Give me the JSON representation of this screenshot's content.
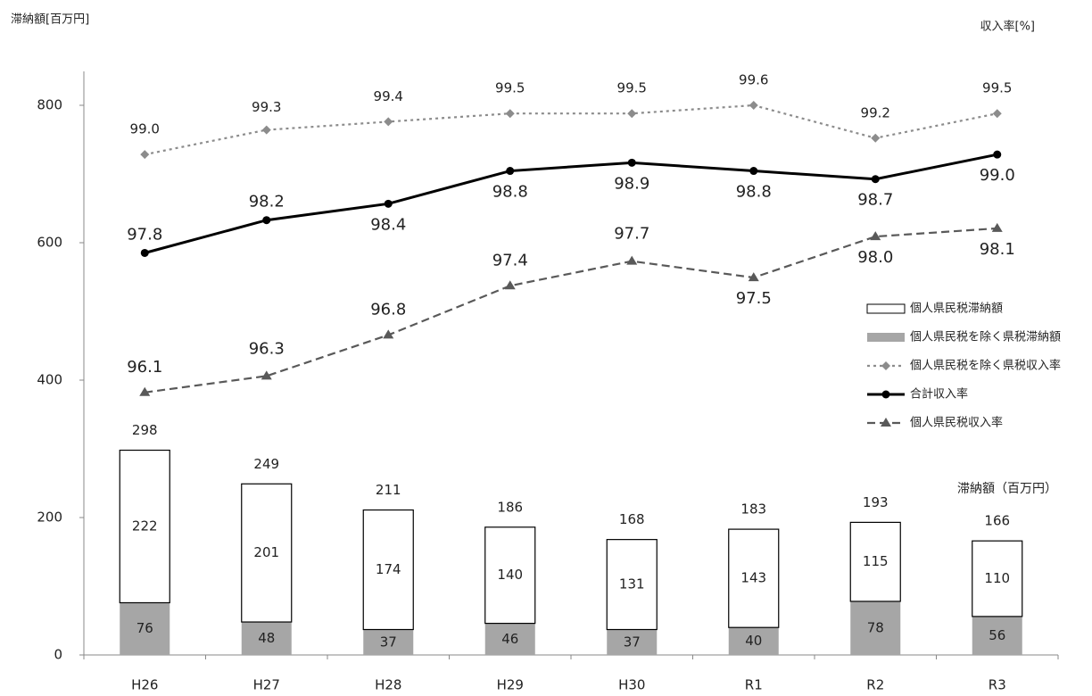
{
  "chart_data": {
    "type": "bar",
    "y_label": "滞納額[百万円]",
    "y2_label": "収入率[%]",
    "annotation": "滞納額（百万円）",
    "categories": [
      "H26",
      "H27",
      "H28",
      "H29",
      "H30",
      "R1",
      "R2",
      "R3"
    ],
    "stacked": true,
    "series": [
      {
        "name": "個人県民税を除く県税滞納額",
        "type": "bar",
        "color": "#a6a6a6",
        "values": [
          76,
          48,
          37,
          46,
          37,
          40,
          78,
          56
        ]
      },
      {
        "name": "個人県民税滞納額",
        "type": "bar",
        "color": "#ffffff",
        "values": [
          222,
          201,
          174,
          140,
          131,
          143,
          115,
          110
        ]
      },
      {
        "name": "個人県民税を除く県税収入率",
        "type": "line",
        "axis": "y2",
        "style": "dotted",
        "marker": "diamond",
        "color": "#8c8c8c",
        "values": [
          99.0,
          99.3,
          99.4,
          99.5,
          99.5,
          99.6,
          99.2,
          99.5
        ],
        "value_labels": [
          "99.0",
          "99.3",
          "99.4",
          "99.5",
          "99.5",
          "99.6",
          "99.2",
          "99.5"
        ]
      },
      {
        "name": "合計収入率",
        "type": "line",
        "axis": "y2",
        "style": "solid",
        "marker": "circle",
        "color": "#000000",
        "values": [
          97.8,
          98.2,
          98.4,
          98.8,
          98.9,
          98.8,
          98.7,
          99.0
        ],
        "value_labels": [
          "97.8",
          "98.2",
          "98.4",
          "98.8",
          "98.9",
          "98.8",
          "98.7",
          "99.0"
        ]
      },
      {
        "name": "個人県民税収入率",
        "type": "line",
        "axis": "y2",
        "style": "dashed",
        "marker": "triangle",
        "color": "#595959",
        "values": [
          96.1,
          96.3,
          96.8,
          97.4,
          97.7,
          97.5,
          98.0,
          98.1
        ],
        "value_labels": [
          "96.1",
          "96.3",
          "96.8",
          "97.4",
          "97.7",
          "97.5",
          "98.0",
          "98.1"
        ]
      }
    ],
    "totals": [
      298,
      249,
      211,
      186,
      168,
      183,
      193,
      166
    ],
    "ylim": [
      0,
      800
    ],
    "yticks": [
      0,
      200,
      400,
      600,
      800
    ],
    "y2lim": [
      92.9,
      99.6
    ],
    "grid": false
  }
}
